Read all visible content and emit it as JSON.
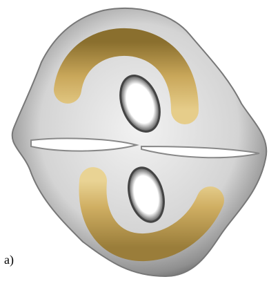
{
  "label": "a)"
}
